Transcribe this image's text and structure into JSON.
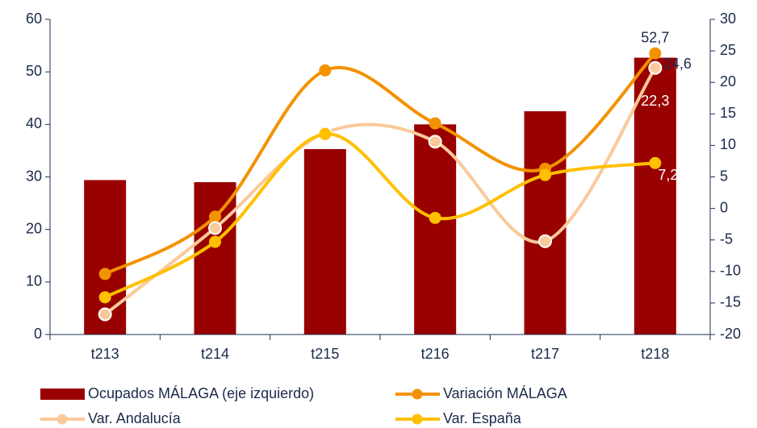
{
  "chart_data": {
    "type": "bar",
    "categories": [
      "t213",
      "t214",
      "t215",
      "t216",
      "t217",
      "t218"
    ],
    "series": [
      {
        "name": "Ocupados MÁLAGA (eje izquierdo)",
        "type": "bar",
        "color": "#990000",
        "values": [
          29.4,
          29.0,
          35.3,
          40.0,
          42.5,
          52.7
        ],
        "value_labels": [
          null,
          null,
          null,
          null,
          null,
          "52,7"
        ]
      },
      {
        "name": "Variación MÁLAGA",
        "type": "line",
        "axis": "y2",
        "color": "#f39200",
        "values": [
          -10.4,
          -1.3,
          21.9,
          13.5,
          6.3,
          24.6
        ],
        "value_labels": [
          null,
          null,
          null,
          null,
          null,
          "24,6"
        ]
      },
      {
        "name": "Var. Andalucía",
        "type": "line",
        "axis": "y2",
        "color": "#fbc99a",
        "values": [
          -16.8,
          -3.1,
          12.0,
          10.6,
          -5.2,
          22.3
        ],
        "value_labels": [
          null,
          null,
          null,
          null,
          null,
          "22,3"
        ]
      },
      {
        "name": "Var. España",
        "type": "line",
        "axis": "y2",
        "color": "#ffc000",
        "values": [
          -14.1,
          -5.3,
          11.8,
          -1.5,
          5.3,
          7.2
        ],
        "value_labels": [
          null,
          null,
          null,
          null,
          null,
          "7,2"
        ]
      }
    ],
    "ylim": [
      0,
      60
    ],
    "yticks": [
      0,
      10,
      20,
      30,
      40,
      50,
      60
    ],
    "y2lim": [
      -20,
      30
    ],
    "y2ticks": [
      -20,
      -15,
      -10,
      -5,
      0,
      5,
      10,
      15,
      20,
      25,
      30
    ]
  }
}
